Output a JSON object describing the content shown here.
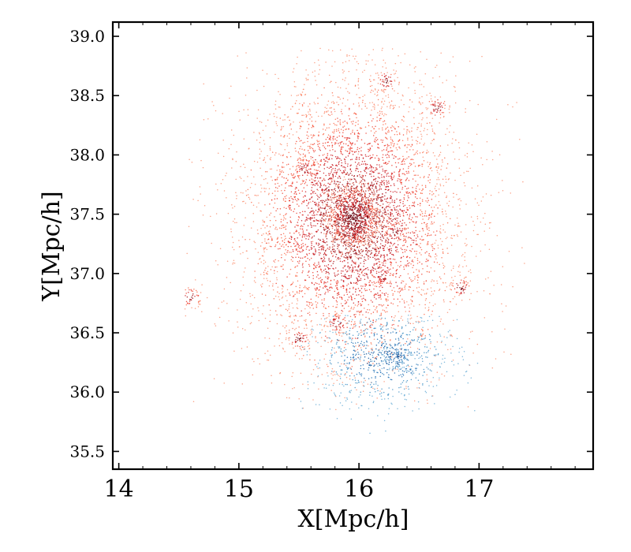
{
  "chart_data": {
    "type": "scatter",
    "title": "",
    "xlabel": "X[Mpc/h]",
    "ylabel": "Y[Mpc/h]",
    "xlim": [
      13.95,
      17.95
    ],
    "ylim": [
      35.35,
      39.12
    ],
    "xticks": [
      14,
      15,
      16,
      17
    ],
    "xtick_labels": [
      "14",
      "15",
      "16",
      "17"
    ],
    "yticks": [
      35.5,
      36.0,
      36.5,
      37.0,
      37.5,
      38.0,
      38.5,
      39.0
    ],
    "ytick_labels": [
      "35.5",
      "36.0",
      "36.5",
      "37.0",
      "37.5",
      "38.0",
      "38.5",
      "39.0"
    ],
    "grid": false,
    "legend": false,
    "series": [
      {
        "color": "#d7301f",
        "approx_point_count": 9000,
        "extent_x": [
          14.55,
          17.4
        ],
        "extent_y": [
          35.85,
          38.9
        ],
        "dense_core": [
          15.95,
          37.47
        ],
        "substructures": [
          [
            15.55,
            37.88
          ],
          [
            16.23,
            38.62
          ],
          [
            16.65,
            38.4
          ],
          [
            15.82,
            36.58
          ],
          [
            15.5,
            36.45
          ],
          [
            16.2,
            36.98
          ],
          [
            16.3,
            37.35
          ],
          [
            16.85,
            36.88
          ],
          [
            14.6,
            36.8
          ]
        ]
      },
      {
        "color": "#3182bd",
        "approx_point_count": 900,
        "extent_x": [
          15.5,
          17.3
        ],
        "extent_y": [
          35.5,
          36.65
        ],
        "dense_core": [
          16.2,
          36.3
        ]
      }
    ]
  }
}
